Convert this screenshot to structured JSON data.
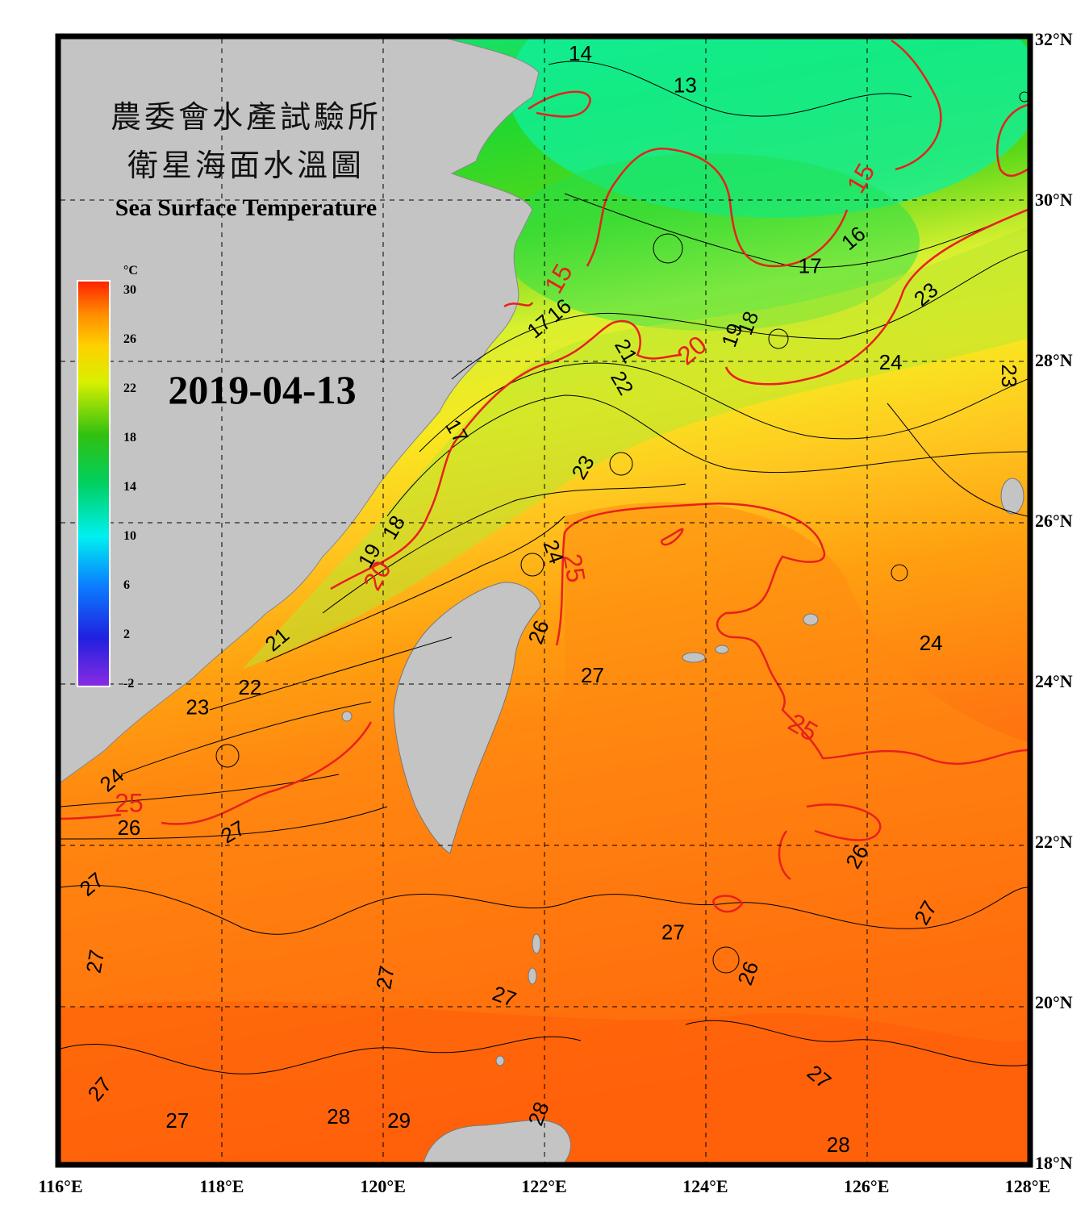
{
  "title": {
    "line1": "農委會水產試驗所",
    "line2": "衛星海面水溫圖",
    "english": "Sea Surface Temperature",
    "date": "2019-04-13"
  },
  "colorbar": {
    "unit": "°C",
    "ticks": [
      "30",
      "26",
      "22",
      "18",
      "14",
      "10",
      "6",
      "2",
      "-2"
    ]
  },
  "axes": {
    "longitude_labels": [
      "116°E",
      "118°E",
      "120°E",
      "122°E",
      "124°E",
      "126°E",
      "128°E"
    ],
    "latitude_labels": [
      "32°N",
      "30°N",
      "28°N",
      "26°N",
      "24°N",
      "22°N",
      "20°N",
      "18°N"
    ],
    "lon_range": [
      116,
      128
    ],
    "lat_range": [
      18,
      32
    ]
  },
  "contour_labels": {
    "black": [
      {
        "text": "14",
        "lon": 122.45,
        "lat": 31.8
      },
      {
        "text": "13",
        "lon": 123.75,
        "lat": 31.4
      },
      {
        "text": "16",
        "lon": 125.85,
        "lat": 29.5,
        "rot": -40
      },
      {
        "text": "17",
        "lon": 125.3,
        "lat": 29.15
      },
      {
        "text": "23",
        "lon": 126.75,
        "lat": 28.8,
        "rot": -40
      },
      {
        "text": "18",
        "lon": 124.55,
        "lat": 28.45,
        "rot": -70
      },
      {
        "text": "19",
        "lon": 124.35,
        "lat": 28.3,
        "rot": -70
      },
      {
        "text": "16",
        "lon": 122.2,
        "lat": 28.6,
        "rot": -40
      },
      {
        "text": "17",
        "lon": 121.95,
        "lat": 28.4,
        "rot": -40
      },
      {
        "text": "21",
        "lon": 123.0,
        "lat": 28.1,
        "rot": 60
      },
      {
        "text": "22",
        "lon": 122.95,
        "lat": 27.7,
        "rot": 60
      },
      {
        "text": "24",
        "lon": 126.3,
        "lat": 27.95
      },
      {
        "text": "23",
        "lon": 127.75,
        "lat": 27.8,
        "rot": 90
      },
      {
        "text": "17",
        "lon": 120.9,
        "lat": 27.1,
        "rot": 60
      },
      {
        "text": "23",
        "lon": 122.5,
        "lat": 26.65,
        "rot": -60
      },
      {
        "text": "18",
        "lon": 120.15,
        "lat": 25.9,
        "rot": -60
      },
      {
        "text": "19",
        "lon": 119.85,
        "lat": 25.55,
        "rot": -60
      },
      {
        "text": "24",
        "lon": 122.1,
        "lat": 25.6,
        "rot": 70
      },
      {
        "text": "26",
        "lon": 121.95,
        "lat": 24.6,
        "rot": -70
      },
      {
        "text": "24",
        "lon": 126.8,
        "lat": 24.45
      },
      {
        "text": "21",
        "lon": 118.7,
        "lat": 24.5,
        "rot": -40
      },
      {
        "text": "27",
        "lon": 122.6,
        "lat": 24.05
      },
      {
        "text": "22",
        "lon": 118.35,
        "lat": 23.9
      },
      {
        "text": "23",
        "lon": 117.7,
        "lat": 23.65
      },
      {
        "text": "24",
        "lon": 116.65,
        "lat": 22.75,
        "rot": -40
      },
      {
        "text": "26",
        "lon": 116.85,
        "lat": 22.15
      },
      {
        "text": "27",
        "lon": 118.15,
        "lat": 22.1,
        "rot": -30
      },
      {
        "text": "26",
        "lon": 125.9,
        "lat": 21.8,
        "rot": -60
      },
      {
        "text": "27",
        "lon": 116.4,
        "lat": 21.45,
        "rot": -40
      },
      {
        "text": "27",
        "lon": 126.75,
        "lat": 21.1,
        "rot": -60
      },
      {
        "text": "27",
        "lon": 123.6,
        "lat": 20.85
      },
      {
        "text": "26",
        "lon": 124.55,
        "lat": 20.35,
        "rot": -70
      },
      {
        "text": "27",
        "lon": 116.45,
        "lat": 20.5,
        "rot": -80
      },
      {
        "text": "27",
        "lon": 120.05,
        "lat": 20.3,
        "rot": -80
      },
      {
        "text": "27",
        "lon": 121.5,
        "lat": 20.05,
        "rot": 20
      },
      {
        "text": "27",
        "lon": 125.4,
        "lat": 19.05,
        "rot": 40
      },
      {
        "text": "27",
        "lon": 116.5,
        "lat": 18.9,
        "rot": -50
      },
      {
        "text": "27",
        "lon": 117.45,
        "lat": 18.5
      },
      {
        "text": "28",
        "lon": 119.45,
        "lat": 18.55
      },
      {
        "text": "29",
        "lon": 120.2,
        "lat": 18.5
      },
      {
        "text": "28",
        "lon": 121.95,
        "lat": 18.6,
        "rot": -70
      },
      {
        "text": "28",
        "lon": 125.65,
        "lat": 18.2
      }
    ],
    "red": [
      {
        "text": "15",
        "lon": 125.95,
        "lat": 30.25,
        "rot": -60
      },
      {
        "text": "15",
        "lon": 122.2,
        "lat": 29.0,
        "rot": -60
      },
      {
        "text": "20",
        "lon": 123.85,
        "lat": 28.1,
        "rot": -40
      },
      {
        "text": "20",
        "lon": 119.95,
        "lat": 25.3,
        "rot": -60
      },
      {
        "text": "25",
        "lon": 122.35,
        "lat": 25.4,
        "rot": 80
      },
      {
        "text": "25",
        "lon": 125.2,
        "lat": 23.4,
        "rot": 30
      },
      {
        "text": "25",
        "lon": 116.85,
        "lat": 22.45
      }
    ]
  }
}
